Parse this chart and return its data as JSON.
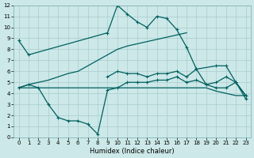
{
  "xlabel": "Humidex (Indice chaleur)",
  "bg_color": "#cce8e8",
  "grid_color": "#aacccc",
  "line_color": "#005f5f",
  "xlim": [
    -0.5,
    23.5
  ],
  "ylim": [
    0,
    12
  ],
  "line1_x": [
    0,
    1,
    9,
    10,
    11,
    12,
    13,
    14,
    15,
    16,
    17,
    18,
    20,
    21,
    22,
    23
  ],
  "line1_y": [
    8.8,
    7.5,
    9.5,
    12.0,
    11.2,
    10.5,
    10.0,
    11.0,
    10.8,
    9.8,
    8.2,
    6.2,
    6.5,
    6.5,
    5.0,
    3.5
  ],
  "line2_x": [
    0,
    1,
    2,
    3,
    4,
    5,
    6,
    7,
    8,
    9,
    10,
    11,
    12,
    13,
    14,
    15,
    16,
    17
  ],
  "line2_y": [
    4.5,
    4.8,
    5.0,
    5.2,
    5.5,
    5.8,
    6.0,
    6.5,
    7.0,
    7.5,
    8.0,
    8.3,
    8.5,
    8.7,
    8.9,
    9.1,
    9.3,
    9.5
  ],
  "line3_x": [
    0,
    1,
    2,
    3,
    4,
    5,
    6,
    7,
    8,
    9,
    10,
    11,
    12,
    13,
    14,
    15,
    16,
    17,
    18,
    19,
    20,
    21,
    22,
    23
  ],
  "line3_y": [
    4.5,
    4.8,
    4.5,
    3.0,
    1.8,
    1.5,
    1.5,
    1.2,
    0.3,
    4.3,
    4.5,
    5.0,
    5.0,
    5.0,
    5.2,
    5.2,
    5.5,
    5.0,
    5.2,
    4.8,
    4.5,
    4.5,
    5.0,
    3.8
  ],
  "line4_x": [
    0,
    1,
    2,
    3,
    4,
    5,
    6,
    7,
    8,
    9,
    10,
    11,
    12,
    13,
    14,
    15,
    16,
    17,
    18,
    19,
    20,
    21,
    22,
    23
  ],
  "line4_y": [
    4.5,
    4.5,
    4.5,
    4.5,
    4.5,
    4.5,
    4.5,
    4.5,
    4.5,
    4.5,
    4.5,
    4.5,
    4.5,
    4.5,
    4.5,
    4.5,
    4.5,
    4.5,
    4.5,
    4.5,
    4.2,
    4.0,
    3.8,
    3.8
  ],
  "line5_x": [
    9,
    10,
    11,
    12,
    13,
    14,
    15,
    16,
    17,
    18,
    19,
    20,
    21,
    22,
    23
  ],
  "line5_y": [
    5.5,
    6.0,
    5.8,
    5.8,
    5.5,
    5.8,
    5.8,
    6.0,
    5.5,
    6.2,
    4.8,
    5.0,
    5.5,
    5.0,
    3.8
  ],
  "xticks": [
    0,
    1,
    2,
    3,
    4,
    5,
    6,
    7,
    8,
    9,
    10,
    11,
    12,
    13,
    14,
    15,
    16,
    17,
    18,
    19,
    20,
    21,
    22,
    23
  ],
  "yticks": [
    0,
    1,
    2,
    3,
    4,
    5,
    6,
    7,
    8,
    9,
    10,
    11,
    12
  ]
}
